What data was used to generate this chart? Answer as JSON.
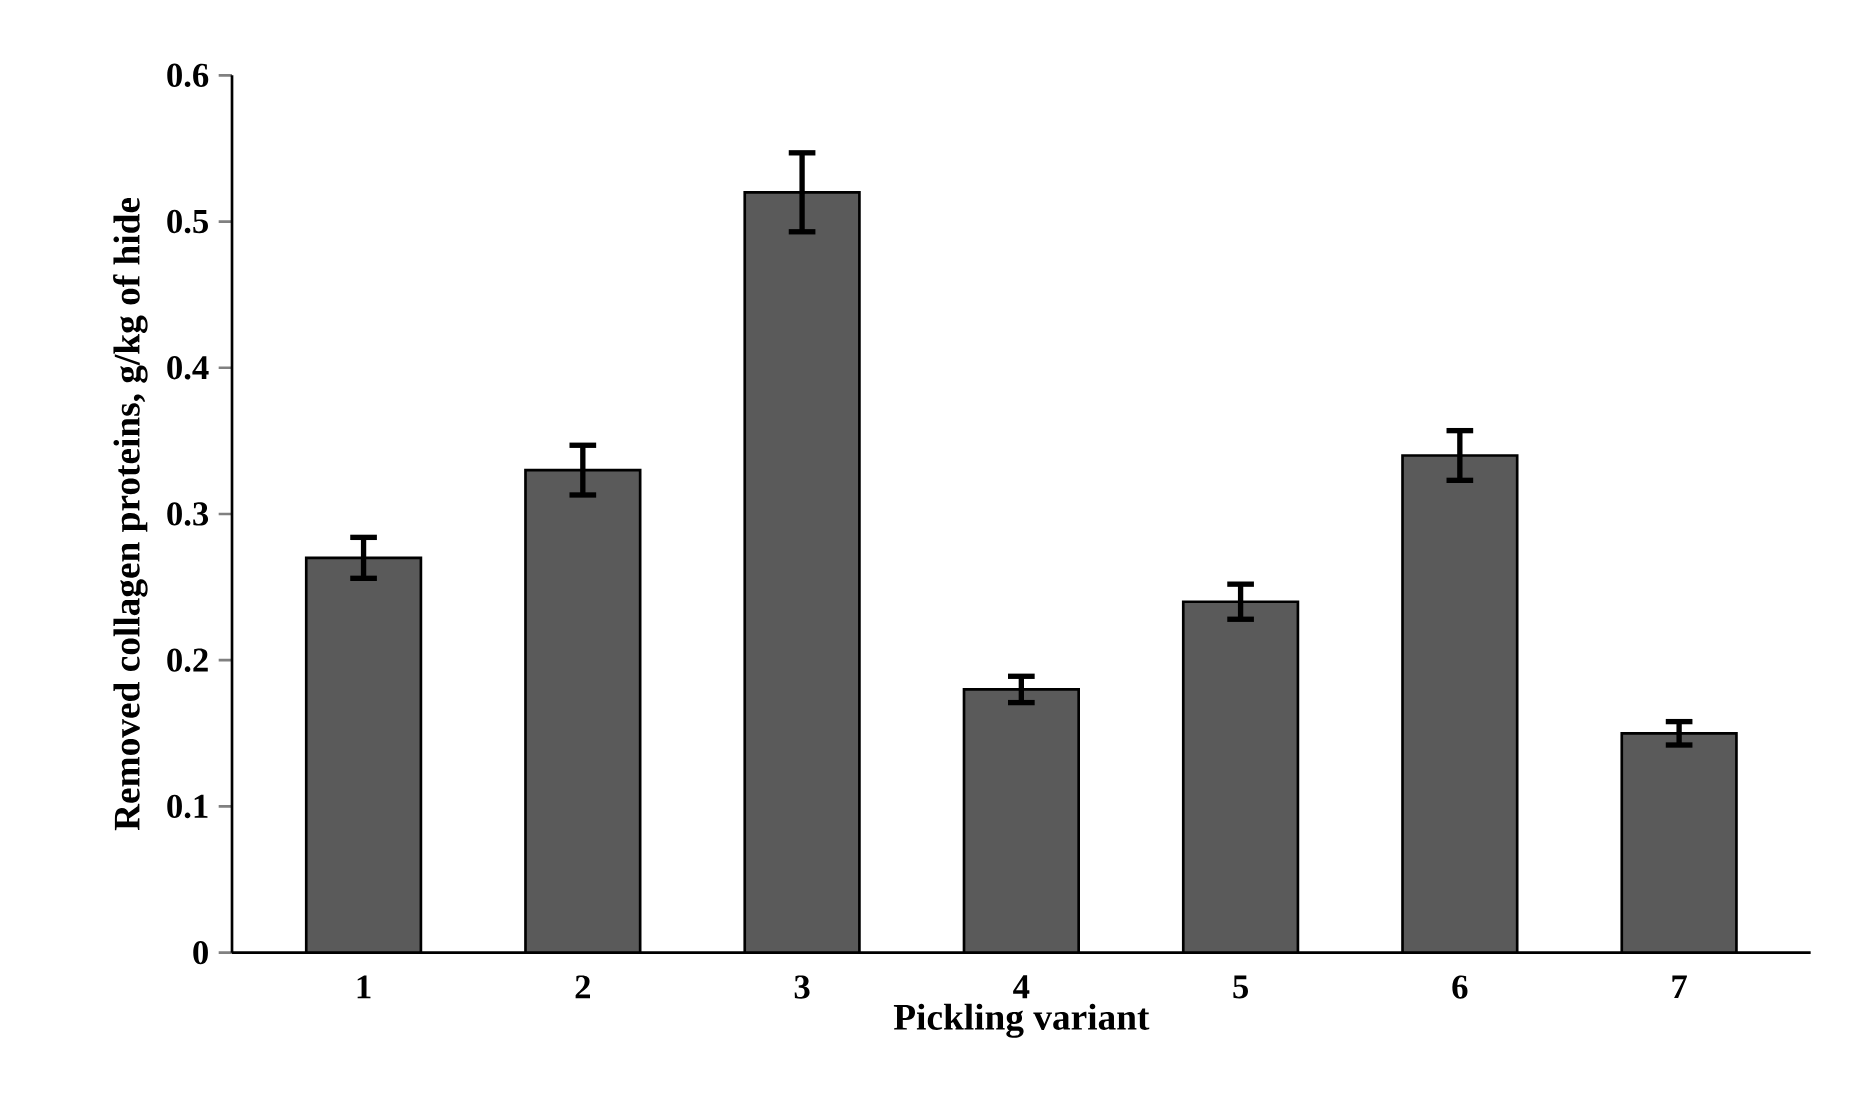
{
  "chart_data": {
    "type": "bar",
    "xlabel": "Pickling variant",
    "ylabel": "Removed collagen proteins, g/kg of hide",
    "categories": [
      "1",
      "2",
      "3",
      "4",
      "5",
      "6",
      "7"
    ],
    "values": [
      0.27,
      0.33,
      0.52,
      0.18,
      0.24,
      0.34,
      0.15
    ],
    "errors": [
      0.014,
      0.017,
      0.027,
      0.009,
      0.012,
      0.017,
      0.008
    ],
    "color": "#5a5a5a",
    "ylim": [
      0,
      0.6
    ],
    "yticks": [
      0,
      0.1,
      0.2,
      0.3,
      0.4,
      0.5,
      0.6
    ]
  }
}
